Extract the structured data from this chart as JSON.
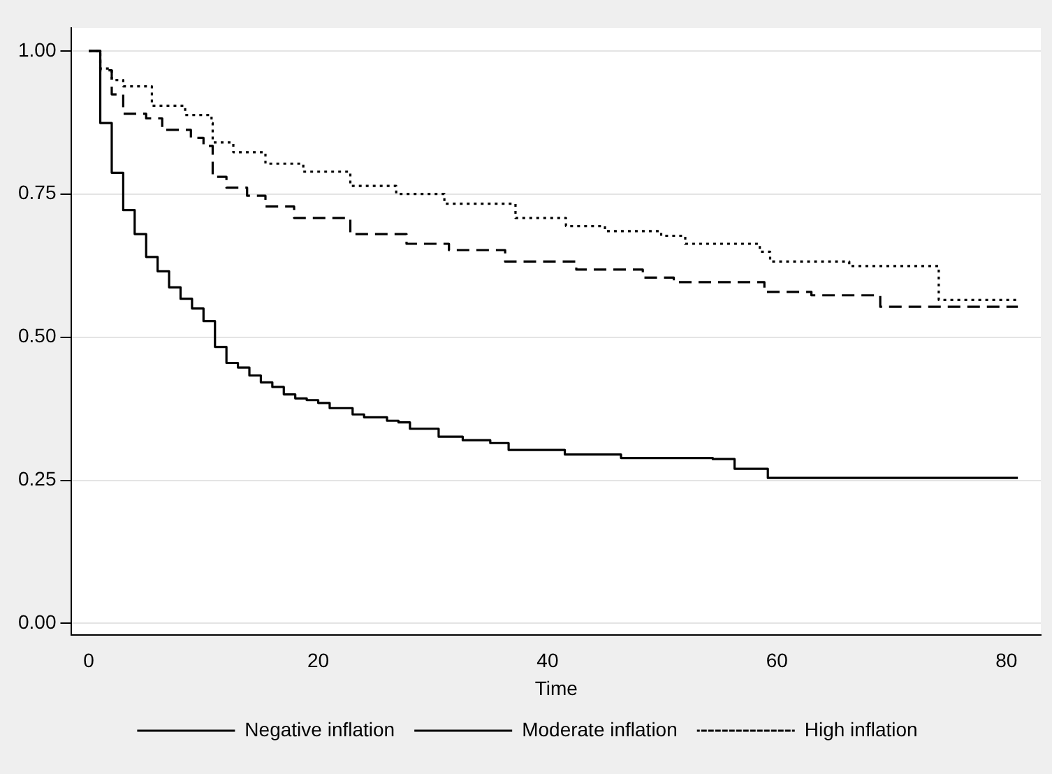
{
  "chart_data": {
    "type": "step",
    "xlabel": "Time",
    "xlim": [
      -1.5,
      83
    ],
    "xticks": [
      0,
      20,
      40,
      60,
      80
    ],
    "ylim": [
      -0.02,
      1.04
    ],
    "yticks": [
      {
        "value": 0,
        "label": "0.00"
      },
      0.25,
      {
        "value": 0.5,
        "label": "0.50"
      },
      0.75,
      {
        "value": 1,
        "label": "1.00"
      }
    ],
    "grid": "y",
    "legend": "bottom",
    "marker": "none",
    "series": [
      {
        "name": "Negative inflation",
        "color": "#000000",
        "line_style": "solid",
        "x": [
          0,
          1,
          2,
          3,
          4,
          5,
          6,
          7,
          8,
          9,
          10,
          11,
          12,
          13,
          14,
          15,
          16,
          17,
          18,
          19,
          20,
          21,
          23,
          24,
          26,
          27,
          28,
          30.5,
          32.6,
          35,
          36.6,
          41.5,
          46.4,
          54.4,
          56.3,
          59.2,
          81
        ],
        "values": [
          1,
          0.874,
          0.787,
          0.722,
          0.68,
          0.64,
          0.615,
          0.587,
          0.567,
          0.55,
          0.528,
          0.483,
          0.455,
          0.447,
          0.433,
          0.421,
          0.413,
          0.4,
          0.393,
          0.39,
          0.385,
          0.376,
          0.365,
          0.36,
          0.354,
          0.351,
          0.34,
          0.326,
          0.32,
          0.315,
          0.303,
          0.295,
          0.289,
          0.287,
          0.27,
          0.254,
          0.254
        ]
      },
      {
        "name": "Moderate inflation",
        "color": "#000000",
        "line_style": "dashed",
        "x": [
          0,
          1,
          2,
          3,
          5,
          6.4,
          8.9,
          10,
          10.8,
          12,
          13.8,
          15.4,
          17.9,
          22.8,
          27.7,
          31.4,
          36.3,
          42.5,
          48.3,
          51,
          58.9,
          63,
          69,
          81
        ],
        "values": [
          1,
          0.966,
          0.924,
          0.89,
          0.882,
          0.862,
          0.848,
          0.834,
          0.78,
          0.761,
          0.747,
          0.728,
          0.708,
          0.68,
          0.663,
          0.652,
          0.632,
          0.618,
          0.604,
          0.596,
          0.579,
          0.573,
          0.553,
          0.553
        ]
      },
      {
        "name": "High inflation",
        "color": "#000000",
        "line_style": "dotted",
        "x": [
          0,
          1,
          2,
          3,
          5.5,
          8.4,
          10.7,
          10.8,
          12.6,
          15.4,
          18.7,
          22.8,
          26.8,
          31,
          37.2,
          41.6,
          45,
          49.9,
          52,
          58.5,
          59.4,
          66.3,
          74.1,
          81
        ],
        "values": [
          1,
          0.969,
          0.949,
          0.938,
          0.904,
          0.888,
          0.874,
          0.84,
          0.823,
          0.803,
          0.789,
          0.764,
          0.75,
          0.733,
          0.708,
          0.694,
          0.685,
          0.677,
          0.663,
          0.649,
          0.632,
          0.624,
          0.565,
          0.565
        ]
      }
    ]
  }
}
